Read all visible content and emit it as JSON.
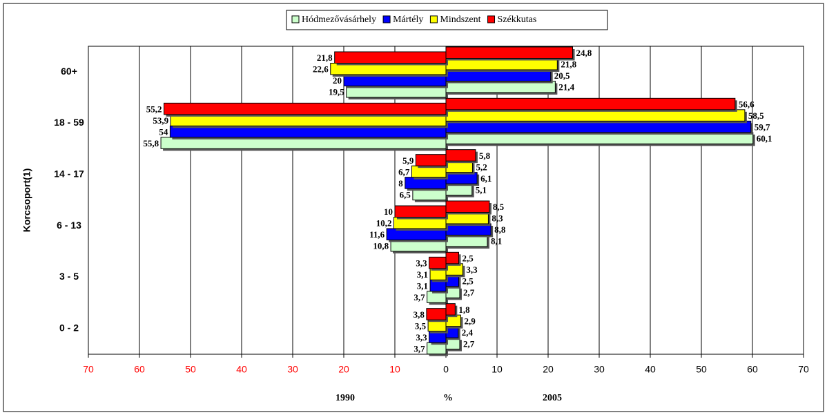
{
  "chart_data": {
    "type": "butterfly-bar",
    "categories": [
      "60+",
      "18 - 59",
      "14 - 17",
      "6 - 13",
      "3 - 5",
      "0 - 2"
    ],
    "y_axis_label": "Korcsoport(1)",
    "x_labels": [
      "1990",
      "%",
      "2005"
    ],
    "xlim": [
      -70,
      70
    ],
    "xticks": [
      {
        "value": -70,
        "label": "70"
      },
      {
        "value": -60,
        "label": "60"
      },
      {
        "value": -50,
        "label": "50"
      },
      {
        "value": -40,
        "label": "40"
      },
      {
        "value": -30,
        "label": "30"
      },
      {
        "value": -20,
        "label": "20"
      },
      {
        "value": -10,
        "label": "10"
      },
      0,
      10,
      20,
      30,
      40,
      50,
      60,
      70
    ],
    "negative_tick_color": "#ff0000",
    "tick_color": "#000000",
    "grid": true,
    "legend": "top",
    "series": [
      {
        "name": "Hódmezővásárhely",
        "color": "#ccffcc",
        "values_left": [
          -19.5,
          -55.8,
          -6.5,
          -10.8,
          -3.7,
          -3.7
        ],
        "value_labels_left": [
          "19,5",
          "55,8",
          "6,5",
          "10,8",
          "3,7",
          "3,7"
        ],
        "values": [
          21.4,
          60.1,
          5.1,
          8.1,
          2.7,
          2.7
        ],
        "value_labels": [
          "21,4",
          "60,1",
          "5,1",
          "8,1",
          "2,7",
          "2,7"
        ]
      },
      {
        "name": "Mártély",
        "color": "#0000ff",
        "values_left": [
          -20,
          -54,
          -8,
          -11.6,
          -3.1,
          -3.3
        ],
        "value_labels_left": [
          "20",
          "54",
          "8",
          "11,6",
          "3,1",
          "3,3"
        ],
        "values": [
          20.5,
          59.7,
          6.1,
          8.8,
          2.5,
          2.4
        ],
        "value_labels": [
          "20,5",
          "59,7",
          "6,1",
          "8,8",
          "2,5",
          "2,4"
        ]
      },
      {
        "name": "Mindszent",
        "color": "#ffff00",
        "values_left": [
          -22.6,
          -53.9,
          -6.7,
          -10.2,
          -3.1,
          -3.5
        ],
        "value_labels_left": [
          "22,6",
          "53,9",
          "6,7",
          "10,2",
          "3,1",
          "3,5"
        ],
        "values": [
          21.8,
          58.5,
          5.2,
          8.3,
          3.3,
          2.9
        ],
        "value_labels": [
          "21,8",
          "58,5",
          "5,2",
          "8,3",
          "3,3",
          "2,9"
        ]
      },
      {
        "name": "Székkutas",
        "color": "#ff0000",
        "values_left": [
          -21.8,
          -55.2,
          -5.9,
          -10,
          -3.3,
          -3.8
        ],
        "value_labels_left": [
          "21,8",
          "55,2",
          "5,9",
          "10",
          "3,3",
          "3,8"
        ],
        "values": [
          24.8,
          56.6,
          5.8,
          8.5,
          2.5,
          1.8
        ],
        "value_labels": [
          "24,8",
          "56,6",
          "5,8",
          "8,5",
          "2,5",
          "1,8"
        ]
      }
    ]
  }
}
